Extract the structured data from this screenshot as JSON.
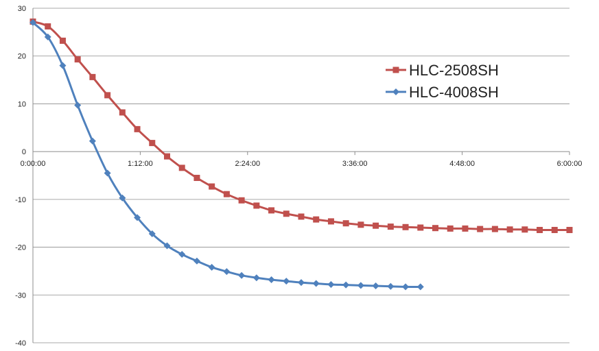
{
  "chart_data": {
    "type": "line",
    "title": "",
    "xlabel": "",
    "ylabel": "",
    "x_unit": "minutes",
    "xlim": [
      0,
      360
    ],
    "ylim": [
      -40,
      30
    ],
    "y_ticks": [
      30,
      20,
      10,
      0,
      -10,
      -20,
      -30,
      -40
    ],
    "x_ticks": [
      0,
      72,
      144,
      216,
      288,
      360
    ],
    "x_tick_labels": [
      "0:00:00",
      "1:12:00",
      "2:24:00",
      "3:36:00",
      "4:48:00",
      "6:00:00"
    ],
    "grid": "horizontal",
    "legend_position": "right",
    "series": [
      {
        "name": "HLC-2508SH",
        "color": "#c0504d",
        "marker": "square",
        "x": [
          0,
          10,
          20,
          30,
          40,
          50,
          60,
          70,
          80,
          90,
          100,
          110,
          120,
          130,
          140,
          150,
          160,
          170,
          180,
          190,
          200,
          210,
          220,
          230,
          240,
          250,
          260,
          270,
          280,
          290,
          300,
          310,
          320,
          330,
          340,
          350,
          360
        ],
        "values": [
          27.2,
          26.2,
          23.2,
          19.3,
          15.6,
          11.8,
          8.2,
          4.7,
          1.8,
          -1.0,
          -3.4,
          -5.5,
          -7.3,
          -8.9,
          -10.2,
          -11.3,
          -12.3,
          -13.0,
          -13.6,
          -14.2,
          -14.6,
          -15.0,
          -15.3,
          -15.5,
          -15.7,
          -15.8,
          -15.9,
          -16.0,
          -16.1,
          -16.1,
          -16.2,
          -16.2,
          -16.3,
          -16.3,
          -16.4,
          -16.4,
          -16.4
        ]
      },
      {
        "name": "HLC-4008SH",
        "color": "#4f81bd",
        "marker": "diamond",
        "x": [
          0,
          10,
          20,
          30,
          40,
          50,
          60,
          70,
          80,
          90,
          100,
          110,
          120,
          130,
          140,
          150,
          160,
          170,
          180,
          190,
          200,
          210,
          220,
          230,
          240,
          250,
          260
        ],
        "values": [
          27.0,
          24.0,
          18.0,
          9.7,
          2.2,
          -4.5,
          -9.7,
          -13.8,
          -17.2,
          -19.7,
          -21.5,
          -22.9,
          -24.2,
          -25.1,
          -25.9,
          -26.4,
          -26.8,
          -27.1,
          -27.4,
          -27.6,
          -27.8,
          -27.9,
          -28.0,
          -28.1,
          -28.2,
          -28.3,
          -28.3
        ]
      }
    ]
  }
}
